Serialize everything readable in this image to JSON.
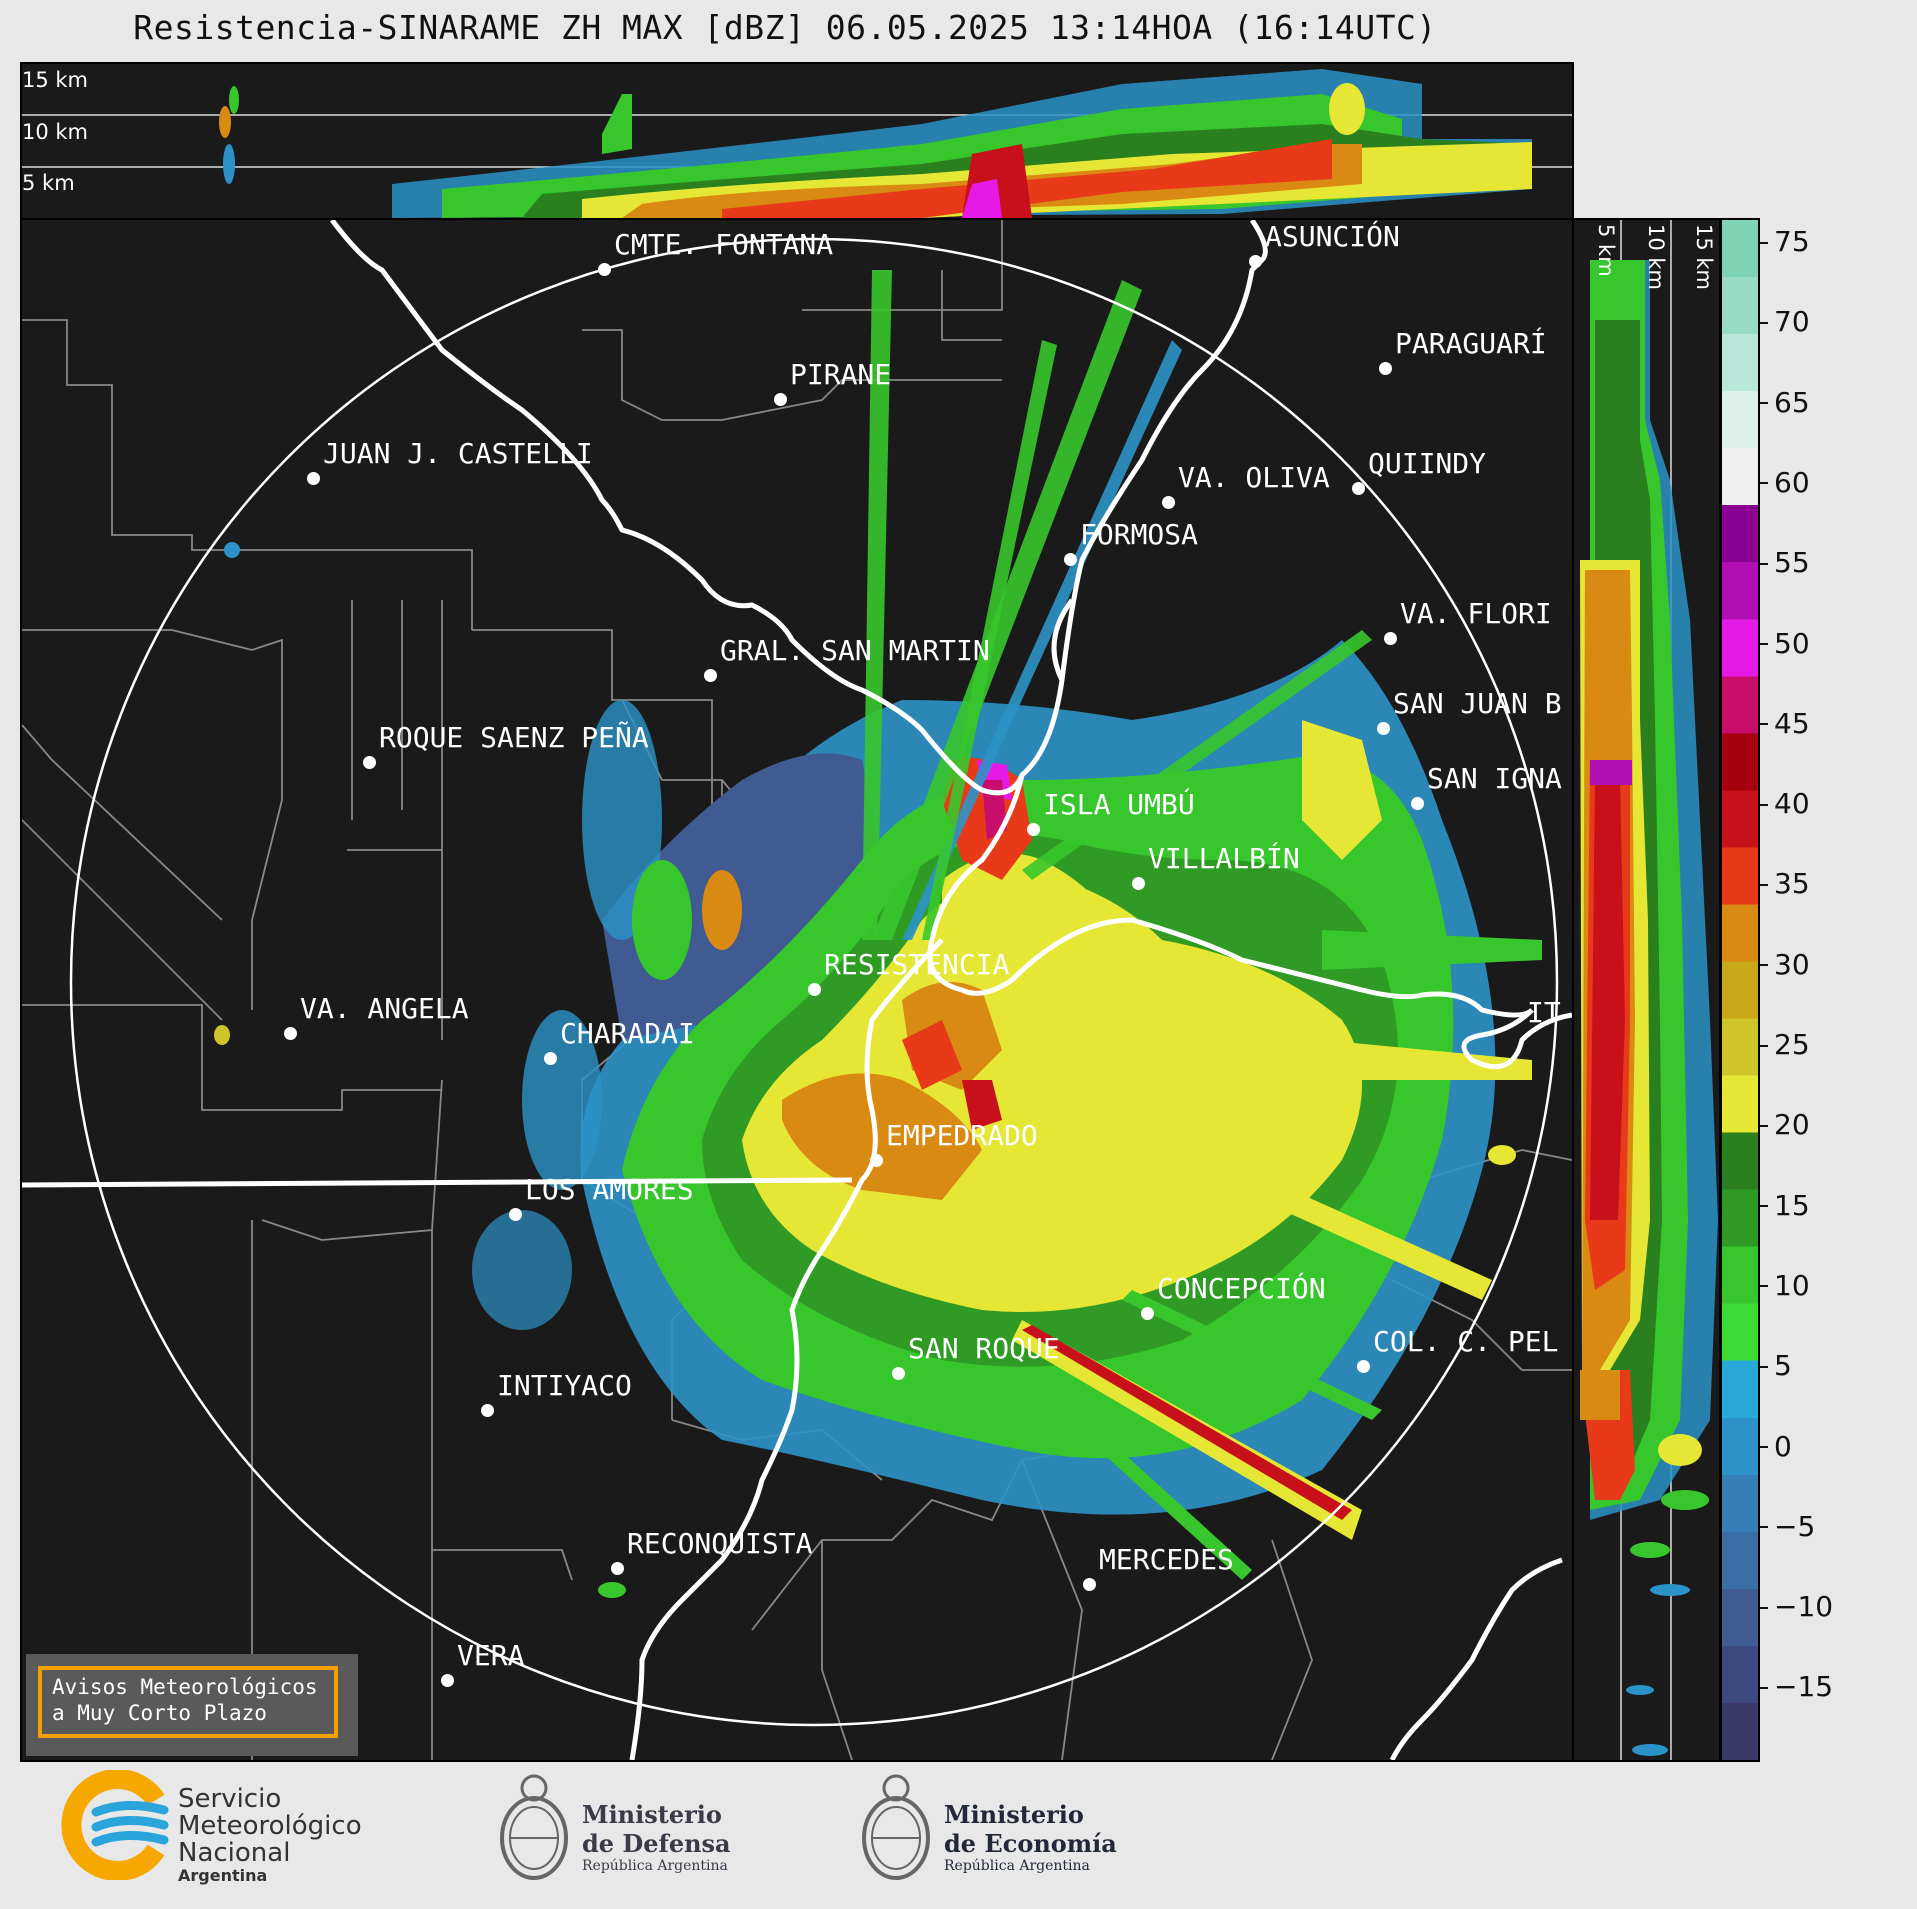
{
  "title": "Resistencia-SINARAME ZH MAX [dBZ] 06.05.2025 13:14HOA (16:14UTC)",
  "top_panel": {
    "heights": [
      "15 km",
      "10 km",
      "5 km"
    ]
  },
  "right_panel": {
    "heights": [
      "5 km",
      "10 km",
      "15 km"
    ]
  },
  "colorbar": {
    "ticks": [
      "75",
      "70",
      "65",
      "60",
      "55",
      "50",
      "45",
      "40",
      "35",
      "30",
      "25",
      "20",
      "15",
      "10",
      "5",
      "0",
      "−5",
      "−10",
      "−15"
    ],
    "colors": [
      "#3b3a6b",
      "#3d4a80",
      "#3f5b92",
      "#3b6ea6",
      "#347fb8",
      "#2c93c8",
      "#27a8d6",
      "#3ddc35",
      "#37c62c",
      "#2e9a24",
      "#2a7f1f",
      "#e6e634",
      "#cfc42a",
      "#c9a81a",
      "#d98a12",
      "#e83a18",
      "#c7101a",
      "#a5000e",
      "#c80d6a",
      "#e61ae6",
      "#b10fb5",
      "#8a0093",
      "#f0f0f0",
      "#dcf0ea",
      "#b9e7d9",
      "#98dcc6",
      "#7fd3b5"
    ]
  },
  "cities": [
    {
      "name": "CMTE. FONTANA"
    },
    {
      "name": "ASUNCIÓN"
    },
    {
      "name": "PIRANE"
    },
    {
      "name": "PARAGUARÍ"
    },
    {
      "name": "JUAN J. CASTELLI"
    },
    {
      "name": "VA. OLIVA"
    },
    {
      "name": "QUIINDY"
    },
    {
      "name": "FORMOSA"
    },
    {
      "name": "VA. FLORI"
    },
    {
      "name": "GRAL. SAN MARTIN"
    },
    {
      "name": "SAN JUAN B"
    },
    {
      "name": "ROQUE SAENZ PEÑA"
    },
    {
      "name": "SAN IGNA"
    },
    {
      "name": "ISLA UMBÚ"
    },
    {
      "name": "VILLALBÍN"
    },
    {
      "name": "RESISTENCIA"
    },
    {
      "name": "IT"
    },
    {
      "name": "VA. ANGELA"
    },
    {
      "name": "CHARADAI"
    },
    {
      "name": "EMPEDRADO"
    },
    {
      "name": "LOS AMORES"
    },
    {
      "name": "CONCEPCIÓN"
    },
    {
      "name": "COL. C. PEL"
    },
    {
      "name": "SAN ROQUE"
    },
    {
      "name": "INTIYACO"
    },
    {
      "name": "RECONQUISTA"
    },
    {
      "name": "MERCEDES"
    },
    {
      "name": "VERA"
    }
  ],
  "notice": {
    "line1": "Avisos Meteorológicos",
    "line2": "a Muy Corto Plazo"
  },
  "logos": {
    "smn": {
      "line1": "Servicio",
      "line2": "Meteorológico",
      "line3": "Nacional",
      "line4": "Argentina"
    },
    "defensa": {
      "line1": "Ministerio",
      "line2": "de Defensa",
      "line3": "República Argentina"
    },
    "economia": {
      "line1": "Ministerio",
      "line2": "de Economía",
      "line3": "República Argentina"
    }
  }
}
